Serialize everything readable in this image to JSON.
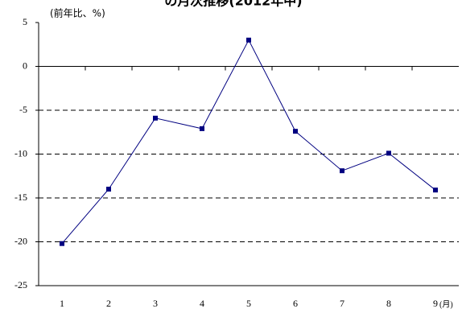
{
  "chart_data": {
    "type": "line",
    "title": "の月次推移(2012年中)",
    "y_label": "(前年比、%)",
    "x_unit": "(月)",
    "categories": [
      "1",
      "2",
      "3",
      "4",
      "5",
      "6",
      "7",
      "8",
      "9"
    ],
    "series": [
      {
        "name": "前年比",
        "color": "#000080",
        "values": [
          -20.2,
          -14.0,
          -5.9,
          -7.1,
          3.0,
          -7.4,
          -11.9,
          -9.9,
          -14.1
        ]
      }
    ],
    "ylim": [
      -25,
      5
    ],
    "yticks": [
      -25,
      -20,
      -15,
      -10,
      -5,
      0,
      5
    ],
    "grid": true
  }
}
